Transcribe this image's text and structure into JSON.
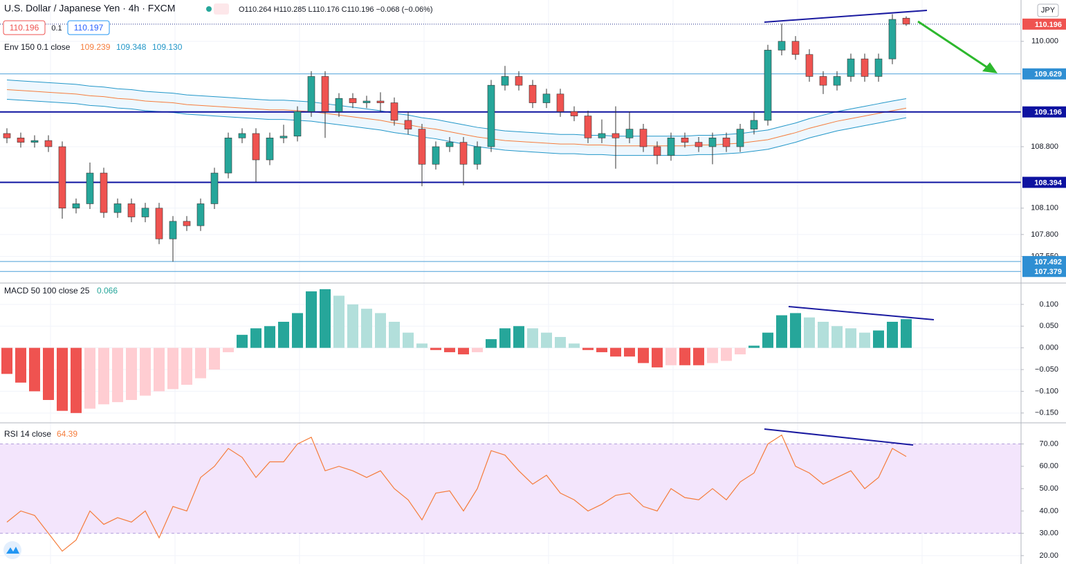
{
  "header": {
    "symbol": "U.S. Dollar / Japanese Yen · 4h · FXCM",
    "ohlc": "O110.264 H110.285 L110.176 C110.196 −0.068 (−0.06%)",
    "bid": "110.196",
    "spread": "0.1",
    "ask": "110.197",
    "currency": "JPY"
  },
  "chart_data": [
    {
      "type": "candlestick",
      "up_color": "#26a69a",
      "down_color": "#ef5350",
      "open": [
        108.95,
        108.9,
        108.85,
        108.87,
        108.8,
        108.1,
        108.15,
        108.5,
        108.05,
        108.15,
        108.0,
        108.1,
        107.75,
        107.95,
        107.9,
        108.15,
        108.5,
        108.9,
        108.95,
        108.65,
        108.9,
        108.92,
        109.2,
        109.6,
        109.2,
        109.35,
        109.3,
        109.32,
        109.3,
        109.1,
        109.0,
        108.6,
        108.8,
        108.85,
        108.6,
        108.8,
        109.5,
        109.6,
        109.5,
        109.3,
        109.4,
        109.2,
        109.15,
        108.9,
        108.95,
        108.9,
        109.0,
        108.8,
        108.7,
        108.9,
        108.85,
        108.8,
        108.9,
        108.8,
        109.0,
        109.1,
        109.9,
        110.0,
        109.85,
        109.6,
        109.5,
        109.6,
        109.8,
        109.6,
        109.8,
        110.264
      ],
      "high": [
        109.01,
        108.96,
        108.93,
        108.93,
        108.86,
        108.21,
        108.62,
        108.56,
        108.21,
        108.21,
        108.16,
        108.16,
        108.01,
        108.01,
        108.21,
        108.56,
        108.96,
        109.01,
        109.01,
        108.96,
        109.05,
        109.26,
        109.66,
        109.66,
        109.41,
        109.41,
        109.38,
        109.42,
        109.36,
        109.2,
        109.06,
        108.86,
        108.91,
        108.91,
        108.86,
        109.56,
        109.72,
        109.66,
        109.56,
        109.46,
        109.46,
        109.26,
        109.21,
        109.11,
        109.26,
        109.2,
        109.06,
        108.86,
        108.96,
        108.96,
        108.91,
        108.96,
        108.96,
        109.06,
        109.2,
        109.96,
        110.2,
        110.06,
        109.91,
        109.66,
        109.66,
        109.86,
        109.86,
        109.86,
        110.31,
        110.285
      ],
      "low": [
        108.84,
        108.79,
        108.79,
        108.74,
        107.98,
        108.04,
        108.09,
        107.99,
        107.99,
        107.94,
        107.94,
        107.69,
        107.49,
        107.84,
        107.84,
        108.09,
        108.44,
        108.84,
        108.4,
        108.59,
        108.84,
        108.86,
        109.14,
        108.9,
        109.14,
        109.24,
        109.24,
        109.2,
        109.04,
        108.94,
        108.35,
        108.54,
        108.74,
        108.36,
        108.54,
        108.74,
        109.44,
        109.44,
        109.24,
        109.24,
        109.14,
        109.09,
        108.84,
        108.84,
        108.55,
        108.84,
        108.74,
        108.6,
        108.64,
        108.79,
        108.74,
        108.6,
        108.74,
        108.74,
        108.94,
        109.04,
        109.84,
        109.79,
        109.54,
        109.4,
        109.44,
        109.54,
        109.54,
        109.54,
        109.74,
        110.176
      ],
      "close": [
        108.9,
        108.85,
        108.87,
        108.8,
        108.1,
        108.15,
        108.5,
        108.05,
        108.15,
        108.0,
        108.1,
        107.75,
        107.95,
        107.9,
        108.15,
        108.5,
        108.9,
        108.95,
        108.65,
        108.9,
        108.92,
        109.2,
        109.6,
        109.2,
        109.35,
        109.3,
        109.32,
        109.3,
        109.1,
        109.0,
        108.6,
        108.8,
        108.85,
        108.6,
        108.8,
        109.5,
        109.6,
        109.5,
        109.3,
        109.4,
        109.2,
        109.15,
        108.9,
        108.95,
        108.9,
        109.0,
        108.8,
        108.7,
        108.9,
        108.85,
        108.8,
        108.9,
        108.8,
        109.0,
        109.1,
        109.9,
        110.0,
        109.85,
        109.6,
        109.5,
        109.6,
        109.8,
        109.6,
        109.8,
        110.25,
        110.196
      ],
      "envelope": {
        "label": "Env 150 0.1 close",
        "band_color": "rgba(33,150,243,0.08)",
        "lines": [
          {
            "color": "#f57c3b",
            "last": "109.239",
            "values": [
              109.45,
              109.44,
              109.43,
              109.42,
              109.41,
              109.4,
              109.38,
              109.37,
              109.35,
              109.34,
              109.32,
              109.31,
              109.3,
              109.28,
              109.27,
              109.26,
              109.25,
              109.24,
              109.23,
              109.22,
              109.22,
              109.21,
              109.2,
              109.18,
              109.16,
              109.14,
              109.12,
              109.1,
              109.07,
              109.05,
              109.02,
              109.0,
              108.97,
              108.94,
              108.91,
              108.89,
              108.87,
              108.86,
              108.85,
              108.84,
              108.83,
              108.83,
              108.82,
              108.82,
              108.81,
              108.81,
              108.81,
              108.81,
              108.81,
              108.81,
              108.82,
              108.82,
              108.83,
              108.84,
              108.86,
              108.88,
              108.92,
              108.96,
              109.01,
              109.05,
              109.09,
              109.12,
              109.15,
              109.18,
              109.21,
              109.239
            ]
          },
          {
            "color": "#2196c8",
            "last": "109.348",
            "values": [
              109.56,
              109.55,
              109.54,
              109.53,
              109.52,
              109.51,
              109.49,
              109.48,
              109.46,
              109.45,
              109.43,
              109.42,
              109.41,
              109.39,
              109.38,
              109.37,
              109.36,
              109.35,
              109.34,
              109.33,
              109.33,
              109.32,
              109.31,
              109.29,
              109.27,
              109.25,
              109.23,
              109.21,
              109.18,
              109.16,
              109.13,
              109.11,
              109.08,
              109.05,
              109.02,
              109.0,
              108.98,
              108.97,
              108.96,
              108.95,
              108.94,
              108.94,
              108.93,
              108.93,
              108.92,
              108.92,
              108.92,
              108.92,
              108.92,
              108.92,
              108.93,
              108.93,
              108.94,
              108.95,
              108.97,
              108.99,
              109.03,
              109.07,
              109.12,
              109.16,
              109.2,
              109.23,
              109.26,
              109.29,
              109.32,
              109.348
            ]
          },
          {
            "color": "#2196c8",
            "last": "109.130",
            "values": [
              109.34,
              109.33,
              109.32,
              109.31,
              109.3,
              109.29,
              109.27,
              109.26,
              109.24,
              109.23,
              109.21,
              109.2,
              109.19,
              109.17,
              109.16,
              109.15,
              109.14,
              109.13,
              109.12,
              109.11,
              109.11,
              109.1,
              109.09,
              109.07,
              109.05,
              109.03,
              109.01,
              108.99,
              108.96,
              108.94,
              108.91,
              108.89,
              108.86,
              108.83,
              108.8,
              108.78,
              108.76,
              108.75,
              108.74,
              108.73,
              108.72,
              108.72,
              108.71,
              108.71,
              108.7,
              108.7,
              108.7,
              108.7,
              108.7,
              108.7,
              108.71,
              108.71,
              108.72,
              108.73,
              108.75,
              108.77,
              108.81,
              108.85,
              108.9,
              108.94,
              108.98,
              109.01,
              109.04,
              109.07,
              109.1,
              109.13
            ]
          }
        ]
      },
      "levels": [
        {
          "value": 110.196,
          "color": "#ef5350",
          "line": "#1c2a8a",
          "width": 1,
          "dotted": true
        },
        {
          "value": 109.629,
          "color": "#2f8fd3",
          "line": "#4a9fd8",
          "width": 1
        },
        {
          "value": 109.196,
          "color": "#0d12a0",
          "line": "#0d12a0",
          "width": 2
        },
        {
          "value": 108.394,
          "color": "#0d12a0",
          "line": "#0d12a0",
          "width": 2
        },
        {
          "value": 107.492,
          "color": "#2f8fd3",
          "line": "#4a9fd8",
          "width": 1
        },
        {
          "value": 107.379,
          "color": "#2f8fd3",
          "line": "#4a9fd8",
          "width": 1
        }
      ],
      "ylim": [
        107.255,
        110.455
      ],
      "yticks": [
        {
          "value": 110,
          "label": "110.000"
        },
        {
          "value": 108.8,
          "label": "108.800"
        },
        {
          "value": 108.1,
          "label": "108.100"
        },
        {
          "value": 107.8,
          "label": "107.800"
        },
        {
          "value": 107.55,
          "label": "107.550"
        }
      ],
      "grid": true
    },
    {
      "type": "histogram",
      "label": "MACD 50 100 close 25",
      "last": "0.066",
      "last_color": "#26a69a",
      "colors": {
        "pos_up": "#26a69a",
        "pos_down": "#b2dfdb",
        "neg_down": "#ef5350",
        "neg_up": "#ffcdd2"
      },
      "values": [
        -0.06,
        -0.08,
        -0.1,
        -0.12,
        -0.145,
        -0.15,
        -0.14,
        -0.13,
        -0.125,
        -0.12,
        -0.11,
        -0.1,
        -0.095,
        -0.085,
        -0.07,
        -0.05,
        -0.01,
        0.03,
        0.045,
        0.05,
        0.06,
        0.08,
        0.13,
        0.135,
        0.12,
        0.1,
        0.09,
        0.08,
        0.06,
        0.035,
        0.01,
        -0.005,
        -0.01,
        -0.015,
        -0.01,
        0.02,
        0.045,
        0.05,
        0.045,
        0.035,
        0.025,
        0.01,
        -0.005,
        -0.01,
        -0.02,
        -0.02,
        -0.035,
        -0.045,
        -0.04,
        -0.04,
        -0.04,
        -0.035,
        -0.03,
        -0.015,
        0.005,
        0.035,
        0.075,
        0.08,
        0.07,
        0.06,
        0.05,
        0.045,
        0.035,
        0.04,
        0.06,
        0.066
      ],
      "ylim": [
        -0.171,
        0.146
      ],
      "yticks": [
        {
          "value": 0.1,
          "label": "0.100"
        },
        {
          "value": 0.05,
          "label": "0.050"
        },
        {
          "value": 0,
          "label": "0.000"
        },
        {
          "value": -0.05,
          "label": "−0.050"
        },
        {
          "value": -0.1,
          "label": "−0.100"
        },
        {
          "value": -0.15,
          "label": "−0.150"
        }
      ],
      "grid": true
    },
    {
      "type": "line",
      "label": "RSI 14 close",
      "last": "64.39",
      "color": "#f57c3b",
      "band": [
        30,
        70
      ],
      "band_color": "#f3e5fc",
      "values": [
        35,
        40,
        38,
        30,
        22,
        27,
        40,
        34,
        37,
        35,
        40,
        28,
        42,
        40,
        55,
        60,
        68,
        64,
        55,
        62,
        62,
        70,
        73,
        58,
        60,
        58,
        55,
        58,
        50,
        45,
        36,
        48,
        49,
        40,
        50,
        67,
        65,
        58,
        52,
        56,
        48,
        45,
        40,
        43,
        47,
        48,
        42,
        40,
        50,
        46,
        45,
        50,
        45,
        53,
        57,
        70,
        74,
        60,
        57,
        52,
        55,
        58,
        50,
        55,
        68,
        64.39
      ],
      "ylim": [
        16.87,
        78.85
      ],
      "yticks": [
        {
          "value": 20,
          "label": "20.00"
        },
        {
          "value": 30,
          "label": "30.00"
        },
        {
          "value": 40,
          "label": "40.00"
        },
        {
          "value": 50,
          "label": "50.00"
        },
        {
          "value": 60,
          "label": "60.00"
        },
        {
          "value": 70,
          "label": "70.00"
        }
      ],
      "grid": true
    }
  ]
}
